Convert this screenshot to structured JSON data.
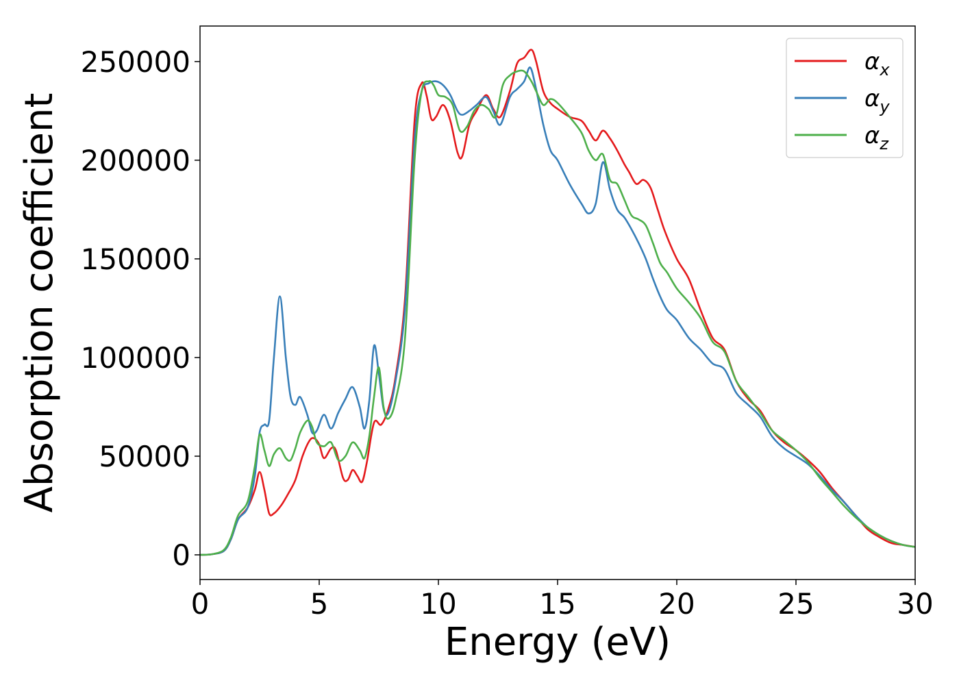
{
  "chart_data": {
    "type": "line",
    "xlabel": "Energy (eV)",
    "ylabel": "Absorption coefficient",
    "xlim": [
      0,
      30
    ],
    "ylim": [
      -12500,
      268000
    ],
    "xticks": [
      0,
      5,
      10,
      15,
      20,
      25,
      30
    ],
    "yticks": [
      0,
      50000,
      100000,
      150000,
      200000,
      250000
    ],
    "grid": false,
    "legend_position": "top-right",
    "series": [
      {
        "name": "α",
        "subscript": "x",
        "color": "#e41a1c",
        "x": [
          0,
          0.5,
          1.0,
          1.3,
          1.6,
          2.0,
          2.3,
          2.5,
          2.7,
          2.9,
          3.1,
          3.4,
          3.7,
          4.0,
          4.3,
          4.6,
          4.8,
          5.0,
          5.2,
          5.5,
          5.7,
          6.0,
          6.2,
          6.4,
          6.6,
          6.8,
          7.0,
          7.3,
          7.6,
          7.9,
          8.2,
          8.6,
          9.0,
          9.3,
          9.5,
          9.7,
          9.9,
          10.2,
          10.5,
          10.8,
          11.0,
          11.3,
          11.6,
          12.0,
          12.3,
          12.6,
          13.0,
          13.3,
          13.6,
          13.9,
          14.1,
          14.4,
          14.7,
          15.0,
          15.5,
          16.0,
          16.3,
          16.6,
          16.9,
          17.2,
          17.5,
          17.8,
          18.0,
          18.3,
          18.6,
          18.9,
          19.2,
          19.5,
          20.0,
          20.5,
          21.0,
          21.5,
          22.0,
          22.5,
          23.0,
          23.5,
          24.0,
          24.5,
          25.0,
          25.5,
          26.0,
          26.5,
          27.0,
          27.5,
          28.0,
          28.5,
          29.0,
          29.5,
          30.0
        ],
        "y": [
          0,
          300,
          2000,
          8000,
          18000,
          24000,
          33000,
          42000,
          33000,
          21000,
          21000,
          25000,
          31000,
          38000,
          50000,
          58000,
          59000,
          56000,
          49000,
          54000,
          53000,
          39000,
          38000,
          43000,
          40000,
          37000,
          47000,
          67000,
          66000,
          74000,
          90000,
          130000,
          220000,
          239000,
          233000,
          221000,
          222000,
          228000,
          220000,
          204000,
          202000,
          218000,
          225000,
          233000,
          226000,
          222000,
          235000,
          249000,
          252000,
          256000,
          250000,
          235000,
          229000,
          226000,
          222000,
          220000,
          215000,
          210000,
          215000,
          211000,
          205000,
          198000,
          194000,
          188000,
          190000,
          186000,
          175000,
          164000,
          150000,
          140000,
          124000,
          110000,
          104000,
          88000,
          79000,
          73000,
          63000,
          57000,
          53000,
          48000,
          42000,
          34000,
          27000,
          20000,
          13000,
          9000,
          6000,
          5000,
          4000
        ]
      },
      {
        "name": "α",
        "subscript": "y",
        "color": "#377eb8",
        "x": [
          0,
          0.5,
          1.0,
          1.3,
          1.6,
          2.0,
          2.3,
          2.5,
          2.7,
          2.9,
          3.1,
          3.35,
          3.6,
          3.8,
          4.0,
          4.2,
          4.5,
          4.7,
          4.9,
          5.2,
          5.5,
          5.8,
          6.1,
          6.4,
          6.7,
          6.9,
          7.1,
          7.3,
          7.5,
          7.7,
          7.9,
          8.2,
          8.6,
          9.0,
          9.3,
          9.6,
          9.9,
          10.2,
          10.5,
          10.8,
          11.0,
          11.3,
          11.6,
          12.0,
          12.3,
          12.6,
          13.0,
          13.3,
          13.6,
          13.85,
          14.1,
          14.4,
          14.7,
          15.0,
          15.5,
          16.0,
          16.3,
          16.6,
          16.9,
          17.2,
          17.5,
          17.8,
          18.1,
          18.4,
          18.7,
          19.0,
          19.3,
          19.6,
          20.0,
          20.5,
          21.0,
          21.5,
          22.0,
          22.5,
          23.0,
          23.5,
          24.0,
          24.5,
          25.0,
          25.5,
          26.0,
          26.5,
          27.0,
          27.5,
          28.0,
          28.5,
          29.0,
          29.5,
          30.0
        ],
        "y": [
          0,
          300,
          2000,
          8000,
          18000,
          24000,
          40000,
          62000,
          66000,
          68000,
          100000,
          131000,
          100000,
          80000,
          76000,
          80000,
          71000,
          62000,
          63000,
          71000,
          64000,
          72000,
          79000,
          85000,
          75000,
          64000,
          78000,
          106000,
          92000,
          74000,
          72000,
          88000,
          125000,
          210000,
          235000,
          239000,
          240000,
          238000,
          233000,
          225000,
          223000,
          225000,
          228000,
          232000,
          225000,
          218000,
          232000,
          236000,
          240000,
          247000,
          236000,
          218000,
          205000,
          200000,
          188000,
          178000,
          173000,
          178000,
          199000,
          185000,
          175000,
          171000,
          165000,
          158000,
          150000,
          140000,
          131000,
          124000,
          119000,
          110000,
          104000,
          97000,
          94000,
          82000,
          76000,
          70000,
          60000,
          54000,
          50000,
          46000,
          40000,
          33000,
          27000,
          20000,
          14000,
          10000,
          7000,
          5000,
          4000
        ]
      },
      {
        "name": "α",
        "subscript": "z",
        "color": "#4daf4a",
        "x": [
          0,
          0.5,
          1.0,
          1.3,
          1.6,
          2.0,
          2.3,
          2.5,
          2.7,
          2.9,
          3.1,
          3.35,
          3.6,
          3.8,
          4.0,
          4.2,
          4.5,
          4.7,
          4.9,
          5.2,
          5.5,
          5.8,
          6.1,
          6.4,
          6.7,
          6.9,
          7.1,
          7.3,
          7.5,
          7.7,
          7.9,
          8.2,
          8.6,
          9.0,
          9.3,
          9.6,
          9.8,
          10.0,
          10.3,
          10.6,
          10.9,
          11.2,
          11.5,
          11.8,
          12.1,
          12.4,
          12.7,
          13.0,
          13.3,
          13.6,
          13.9,
          14.1,
          14.4,
          14.7,
          15.0,
          15.5,
          16.0,
          16.3,
          16.6,
          16.9,
          17.2,
          17.5,
          17.8,
          18.1,
          18.4,
          18.7,
          19.0,
          19.3,
          19.6,
          20.0,
          20.5,
          21.0,
          21.5,
          22.0,
          22.5,
          23.0,
          23.5,
          24.0,
          24.5,
          25.0,
          25.5,
          26.0,
          26.5,
          27.0,
          27.5,
          28.0,
          28.5,
          29.0,
          29.5,
          30.0
        ],
        "y": [
          0,
          300,
          2500,
          9000,
          20000,
          27000,
          45000,
          61000,
          53000,
          45000,
          51000,
          54000,
          49000,
          48000,
          54000,
          62000,
          68000,
          65000,
          57000,
          55000,
          57000,
          48000,
          50000,
          57000,
          53000,
          49000,
          60000,
          80000,
          95000,
          75000,
          69000,
          78000,
          110000,
          200000,
          235000,
          240000,
          238000,
          233000,
          232000,
          228000,
          215000,
          217000,
          225000,
          228000,
          226000,
          222000,
          238000,
          243000,
          245000,
          245000,
          240000,
          235000,
          228000,
          231000,
          229000,
          222000,
          214000,
          205000,
          200000,
          203000,
          190000,
          188000,
          180000,
          172000,
          170000,
          167000,
          158000,
          148000,
          143000,
          135000,
          128000,
          120000,
          108000,
          103000,
          88000,
          80000,
          72000,
          63000,
          58000,
          53000,
          47000,
          39000,
          32000,
          25000,
          19000,
          14000,
          10000,
          7000,
          5000,
          4000
        ]
      }
    ]
  }
}
